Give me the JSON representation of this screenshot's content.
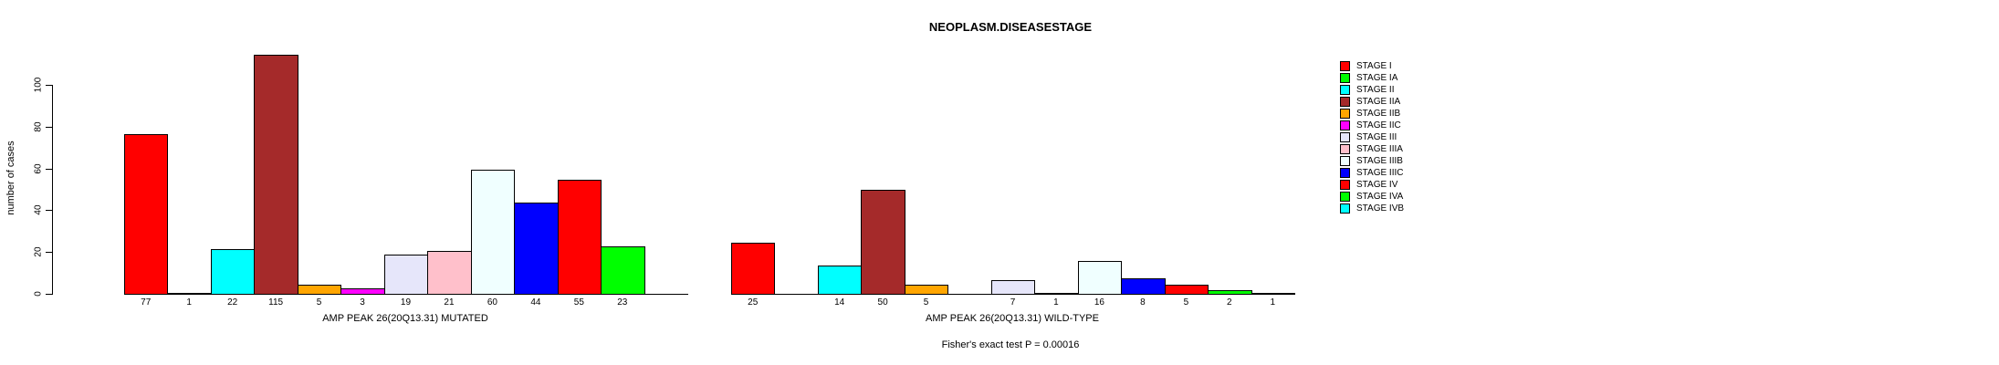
{
  "chart_data": {
    "type": "bar",
    "title": "NEOPLASM.DISEASESTAGE",
    "ylabel": "number of cases",
    "xlabel": "",
    "ylim": [
      0,
      115
    ],
    "yticks": [
      0,
      20,
      40,
      60,
      80,
      100
    ],
    "grid": false,
    "legend_position": "right",
    "categories": [
      "STAGE I",
      "STAGE IA",
      "STAGE II",
      "STAGE IIA",
      "STAGE IIB",
      "STAGE IIC",
      "STAGE III",
      "STAGE IIIA",
      "STAGE IIIB",
      "STAGE IIIC",
      "STAGE IV",
      "STAGE IVA",
      "STAGE IVB"
    ],
    "palette": [
      "#FF0000",
      "#00FF00",
      "#00FFFF",
      "#A52A2A",
      "#FFA500",
      "#FF00FF",
      "#E6E6FA",
      "#FFC0CB",
      "#F0FFFF",
      "#0000FF",
      "#FF0000",
      "#00FF00",
      "#00FFFF"
    ],
    "series": [
      {
        "name": "AMP PEAK 26(20Q13.31) MUTATED",
        "values": [
          77,
          1,
          22,
          115,
          5,
          3,
          19,
          21,
          60,
          44,
          55,
          23,
          0
        ]
      },
      {
        "name": "AMP PEAK 26(20Q13.31) WILD-TYPE",
        "values": [
          25,
          0,
          14,
          50,
          5,
          0,
          7,
          1,
          16,
          8,
          5,
          2,
          1
        ]
      }
    ],
    "footer": "Fisher's exact test P = 0.00016"
  },
  "legend": {
    "items": [
      {
        "label": "STAGE I",
        "color": "#FF0000"
      },
      {
        "label": "STAGE IA",
        "color": "#00FF00"
      },
      {
        "label": "STAGE II",
        "color": "#00FFFF"
      },
      {
        "label": "STAGE IIA",
        "color": "#A52A2A"
      },
      {
        "label": "STAGE IIB",
        "color": "#FFA500"
      },
      {
        "label": "STAGE IIC",
        "color": "#FF00FF"
      },
      {
        "label": "STAGE III",
        "color": "#E6E6FA"
      },
      {
        "label": "STAGE IIIA",
        "color": "#FFC0CB"
      },
      {
        "label": "STAGE IIIB",
        "color": "#F0FFFF"
      },
      {
        "label": "STAGE IIIC",
        "color": "#0000FF"
      },
      {
        "label": "STAGE IV",
        "color": "#FF0000"
      },
      {
        "label": "STAGE IVA",
        "color": "#00FF00"
      },
      {
        "label": "STAGE IVB",
        "color": "#00FFFF"
      }
    ]
  }
}
